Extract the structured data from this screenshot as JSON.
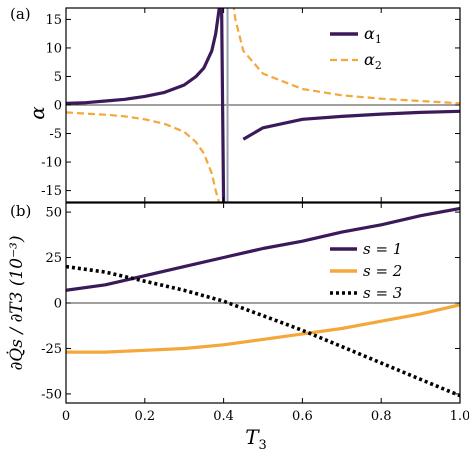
{
  "chart_data": [
    {
      "panel_label": "(a)",
      "type": "line",
      "ylabel": "α",
      "xlim": [
        0,
        1
      ],
      "ylim": [
        -17,
        17
      ],
      "yticks": [
        -15,
        -10,
        -5,
        0,
        5,
        10,
        15
      ],
      "ytick_labels": [
        "-15",
        "-10",
        "-5",
        "0",
        "5",
        "10",
        "15"
      ],
      "grid": false,
      "zero_line": true,
      "pole_x": 0.41,
      "legend_position": "top-right",
      "series": [
        {
          "name": "α",
          "sub": "1",
          "color": "#3b1a5a",
          "dash": "solid",
          "x": [
            0,
            0.05,
            0.1,
            0.15,
            0.2,
            0.25,
            0.3,
            0.33,
            0.35,
            0.37,
            0.38,
            0.39,
            0.395,
            0.4,
            0.45,
            0.5,
            0.6,
            0.7,
            0.8,
            0.9,
            1.0
          ],
          "y": [
            0.3,
            0.4,
            0.7,
            1.0,
            1.5,
            2.2,
            3.5,
            5.0,
            6.5,
            9.5,
            12.5,
            17.5,
            17.5,
            -17.5,
            -6.0,
            -4.0,
            -2.5,
            -2.0,
            -1.6,
            -1.3,
            -1.1
          ]
        },
        {
          "name": "α",
          "sub": "2",
          "color": "#f4a73a",
          "dash": "dashed",
          "x": [
            0,
            0.05,
            0.1,
            0.15,
            0.2,
            0.25,
            0.3,
            0.33,
            0.35,
            0.37,
            0.38,
            0.39,
            0.395,
            0.42,
            0.425,
            0.43,
            0.45,
            0.5,
            0.6,
            0.7,
            0.8,
            0.9,
            1.0
          ],
          "y": [
            -1.3,
            -1.5,
            -1.7,
            -2.0,
            -2.5,
            -3.3,
            -4.7,
            -6.5,
            -8.5,
            -12.0,
            -15.0,
            -17.5,
            -17.5,
            17.5,
            17.5,
            15.0,
            9.5,
            5.5,
            2.8,
            1.7,
            1.1,
            0.7,
            0.3
          ]
        }
      ]
    },
    {
      "panel_label": "(b)",
      "type": "line",
      "xlabel": "T",
      "xlabel_sub": "3",
      "ylabel": "∂Q̇s / ∂T3 (10⁻³)",
      "xlim": [
        0,
        1
      ],
      "ylim": [
        -55,
        55
      ],
      "xticks": [
        0,
        0.2,
        0.4,
        0.6,
        0.8,
        1.0
      ],
      "xtick_labels": [
        "0",
        "0.2",
        "0.4",
        "0.6",
        "0.8",
        "1.0"
      ],
      "yticks": [
        -50,
        -25,
        0,
        25,
        50
      ],
      "ytick_labels": [
        "-50",
        "-25",
        "0",
        "25",
        "50"
      ],
      "grid": false,
      "zero_line": true,
      "legend_position": "right",
      "series": [
        {
          "name": "s = 1",
          "color": "#3b1a5a",
          "dash": "solid",
          "x": [
            0,
            0.1,
            0.2,
            0.3,
            0.4,
            0.5,
            0.6,
            0.7,
            0.8,
            0.9,
            1.0
          ],
          "y": [
            7,
            10,
            15,
            20,
            25,
            30,
            34,
            39,
            43,
            48,
            52
          ]
        },
        {
          "name": "s = 2",
          "color": "#f4a73a",
          "dash": "solid",
          "x": [
            0,
            0.1,
            0.2,
            0.3,
            0.4,
            0.5,
            0.6,
            0.7,
            0.8,
            0.9,
            1.0
          ],
          "y": [
            -27,
            -27,
            -26,
            -25,
            -23,
            -20,
            -17,
            -14,
            -10,
            -6,
            -1
          ]
        },
        {
          "name": "s = 3",
          "color": "#000000",
          "dash": "dotted",
          "x": [
            0,
            0.1,
            0.2,
            0.3,
            0.4,
            0.5,
            0.6,
            0.7,
            0.8,
            0.9,
            1.0
          ],
          "y": [
            20,
            17,
            12,
            7,
            1,
            -7,
            -15,
            -24,
            -33,
            -42,
            -51
          ]
        }
      ]
    }
  ]
}
